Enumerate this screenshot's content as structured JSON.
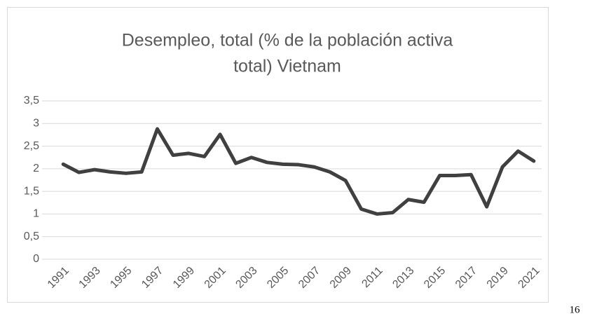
{
  "chart_data": {
    "type": "line",
    "title": [
      "Desempleo, total (% de la población activa",
      "total)  Vietnam"
    ],
    "categories": [
      "1991",
      null,
      "1993",
      null,
      "1995",
      null,
      "1997",
      null,
      "1999",
      null,
      "2001",
      null,
      "2003",
      null,
      "2005",
      null,
      "2007",
      null,
      "2009",
      null,
      "2011",
      null,
      "2013",
      null,
      "2015",
      null,
      "2017",
      null,
      "2019",
      null,
      "2021"
    ],
    "series": [
      {
        "name": "Vietnam",
        "color": "#404040",
        "values": [
          2.1,
          1.92,
          1.98,
          1.93,
          1.9,
          1.93,
          2.88,
          2.3,
          2.34,
          2.27,
          2.76,
          2.12,
          2.25,
          2.14,
          2.1,
          2.09,
          2.04,
          1.93,
          1.74,
          1.11,
          1.0,
          1.03,
          1.32,
          1.26,
          1.85,
          1.85,
          1.87,
          1.16,
          2.04,
          2.39,
          2.17
        ]
      }
    ],
    "ylim": [
      0,
      3.5
    ],
    "yticks": [
      0,
      {
        "value": 0.5,
        "label": "0,5"
      },
      1,
      {
        "value": 1.5,
        "label": "1,5"
      },
      2,
      {
        "value": 2.5,
        "label": "2,5"
      },
      3,
      {
        "value": 3.5,
        "label": "3,5"
      }
    ],
    "grid": true
  },
  "page_number": "16"
}
